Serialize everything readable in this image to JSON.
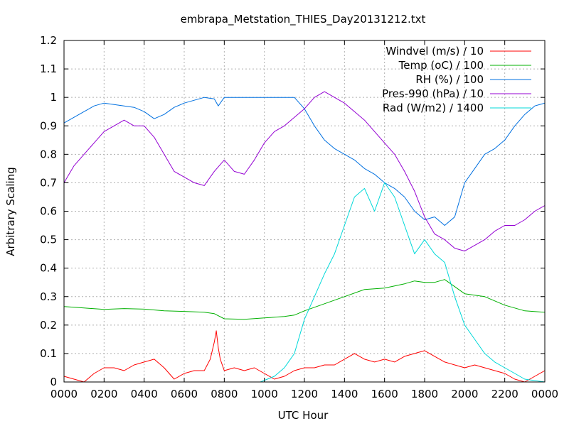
{
  "chart_data": {
    "type": "line",
    "title": "embrapa_Metstation_THIES_Day20131212.txt",
    "xlabel": "UTC Hour",
    "ylabel": "Arbitrary Scaling",
    "xlim": [
      0,
      24
    ],
    "ylim": [
      0,
      1.2
    ],
    "x_ticks": [
      0,
      2,
      4,
      6,
      8,
      10,
      12,
      14,
      16,
      18,
      20,
      22,
      24
    ],
    "x_tick_labels": [
      "0000",
      "0200",
      "0400",
      "0600",
      "0800",
      "1000",
      "1200",
      "1400",
      "1600",
      "1800",
      "2000",
      "2200",
      "0000"
    ],
    "y_ticks": [
      0,
      0.1,
      0.2,
      0.3,
      0.4,
      0.5,
      0.6,
      0.7,
      0.8,
      0.9,
      1,
      1.1,
      1.2
    ],
    "y_tick_labels": [
      "0",
      "0.1",
      "0.2",
      "0.3",
      "0.4",
      "0.5",
      "0.6",
      "0.7",
      "0.8",
      "0.9",
      "1",
      "1.1",
      "1.2"
    ],
    "grid": true,
    "legend_position": "top-right",
    "series": [
      {
        "name": "Windvel (m/s) / 10",
        "color": "#ff0000",
        "x": [
          0,
          0.5,
          1,
          1.5,
          2,
          2.5,
          3,
          3.5,
          4,
          4.5,
          5,
          5.5,
          6,
          6.5,
          7,
          7.3,
          7.5,
          7.6,
          7.7,
          7.8,
          8,
          8.5,
          9,
          9.5,
          10,
          10.5,
          11,
          11.5,
          12,
          12.5,
          13,
          13.5,
          14,
          14.5,
          15,
          15.5,
          16,
          16.5,
          17,
          17.5,
          18,
          18.5,
          19,
          19.5,
          20,
          20.5,
          21,
          21.5,
          22,
          22.5,
          23,
          23.5,
          24
        ],
        "y": [
          0.02,
          0.01,
          0.0,
          0.03,
          0.05,
          0.05,
          0.04,
          0.06,
          0.07,
          0.08,
          0.05,
          0.01,
          0.03,
          0.04,
          0.04,
          0.08,
          0.14,
          0.18,
          0.12,
          0.08,
          0.04,
          0.05,
          0.04,
          0.05,
          0.03,
          0.01,
          0.02,
          0.04,
          0.05,
          0.05,
          0.06,
          0.06,
          0.08,
          0.1,
          0.08,
          0.07,
          0.08,
          0.07,
          0.09,
          0.1,
          0.11,
          0.09,
          0.07,
          0.06,
          0.05,
          0.06,
          0.05,
          0.04,
          0.03,
          0.01,
          0.0,
          0.02,
          0.04
        ]
      },
      {
        "name": "Temp (oC) / 100",
        "color": "#00b000",
        "x": [
          0,
          1,
          2,
          3,
          4,
          5,
          6,
          7,
          7.5,
          8,
          9,
          10,
          11,
          11.5,
          12,
          13,
          14,
          15,
          16,
          17,
          17.5,
          18,
          18.5,
          19,
          19.5,
          20,
          21,
          22,
          23,
          24
        ],
        "y": [
          0.265,
          0.26,
          0.255,
          0.258,
          0.256,
          0.25,
          0.248,
          0.245,
          0.24,
          0.222,
          0.22,
          0.225,
          0.23,
          0.235,
          0.25,
          0.275,
          0.3,
          0.325,
          0.33,
          0.345,
          0.355,
          0.35,
          0.35,
          0.36,
          0.335,
          0.31,
          0.3,
          0.27,
          0.25,
          0.245
        ]
      },
      {
        "name": "RH (%) / 100",
        "color": "#0070e0",
        "x": [
          0,
          0.5,
          1,
          1.5,
          2,
          2.5,
          3,
          3.5,
          4,
          4.5,
          5,
          5.5,
          6,
          6.5,
          7,
          7.5,
          7.7,
          8,
          8.5,
          9,
          9.5,
          10,
          10.5,
          11,
          11.5,
          12,
          12.5,
          13,
          13.5,
          14,
          14.5,
          15,
          15.5,
          16,
          16.5,
          17,
          17.5,
          18,
          18.5,
          19,
          19.5,
          20,
          20.5,
          21,
          21.5,
          22,
          22.5,
          23,
          23.5,
          24
        ],
        "y": [
          0.91,
          0.93,
          0.95,
          0.97,
          0.98,
          0.975,
          0.97,
          0.965,
          0.95,
          0.925,
          0.94,
          0.965,
          0.98,
          0.99,
          1.0,
          0.995,
          0.97,
          1.0,
          1.0,
          1.0,
          1.0,
          1.0,
          1.0,
          1.0,
          1.0,
          0.96,
          0.9,
          0.85,
          0.82,
          0.8,
          0.78,
          0.75,
          0.73,
          0.7,
          0.68,
          0.65,
          0.6,
          0.57,
          0.58,
          0.55,
          0.58,
          0.7,
          0.75,
          0.8,
          0.82,
          0.85,
          0.9,
          0.94,
          0.97,
          0.98
        ]
      },
      {
        "name": "Pres-990 (hPa) / 10",
        "color": "#9400d3",
        "x": [
          0,
          0.5,
          1,
          1.5,
          2,
          2.5,
          3,
          3.5,
          4,
          4.5,
          5,
          5.5,
          6,
          6.5,
          7,
          7.5,
          8,
          8.5,
          9,
          9.5,
          10,
          10.5,
          11,
          11.5,
          12,
          12.5,
          13,
          13.5,
          14,
          14.5,
          15,
          15.5,
          16,
          16.5,
          17,
          17.5,
          18,
          18.5,
          19,
          19.5,
          20,
          20.5,
          21,
          21.5,
          22,
          22.5,
          23,
          23.5,
          24
        ],
        "y": [
          0.7,
          0.76,
          0.8,
          0.84,
          0.88,
          0.9,
          0.92,
          0.9,
          0.9,
          0.86,
          0.8,
          0.74,
          0.72,
          0.7,
          0.69,
          0.74,
          0.78,
          0.74,
          0.73,
          0.78,
          0.84,
          0.88,
          0.9,
          0.93,
          0.96,
          1.0,
          1.02,
          1.0,
          0.98,
          0.95,
          0.92,
          0.88,
          0.84,
          0.8,
          0.74,
          0.67,
          0.58,
          0.52,
          0.5,
          0.47,
          0.46,
          0.48,
          0.5,
          0.53,
          0.55,
          0.55,
          0.57,
          0.6,
          0.62
        ]
      },
      {
        "name": "Rad (W/m2) / 1400",
        "color": "#00d8d8",
        "x": [
          0,
          9.8,
          10.5,
          11,
          11.5,
          12,
          12.5,
          13,
          13.5,
          14,
          14.5,
          15,
          15.5,
          16,
          16.5,
          17,
          17.5,
          18,
          18.5,
          19,
          19.5,
          20,
          20.5,
          21,
          21.5,
          22,
          22.5,
          23,
          24
        ],
        "y": [
          0.0,
          0.0,
          0.02,
          0.05,
          0.1,
          0.22,
          0.3,
          0.38,
          0.45,
          0.55,
          0.65,
          0.68,
          0.6,
          0.7,
          0.65,
          0.55,
          0.45,
          0.5,
          0.45,
          0.42,
          0.3,
          0.2,
          0.15,
          0.1,
          0.07,
          0.05,
          0.03,
          0.01,
          0.0
        ]
      }
    ]
  }
}
